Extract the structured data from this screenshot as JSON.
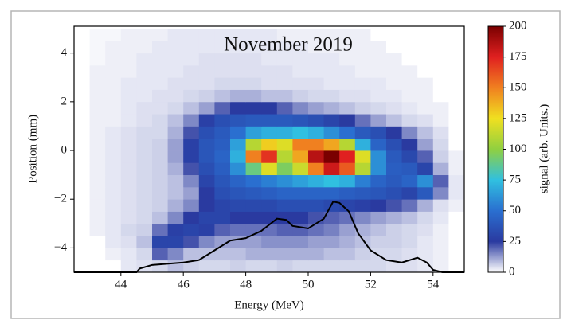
{
  "chart_data": {
    "type": "heatmap",
    "title": "November 2019",
    "xlabel": "Energy (MeV)",
    "ylabel": "Position (mm)",
    "colorbar_label": "signal (arb. Units.)",
    "xlim": [
      42.5,
      55
    ],
    "ylim": [
      -5,
      5.1
    ],
    "xticks": [
      44,
      46,
      48,
      50,
      52,
      54
    ],
    "yticks": [
      {
        "value": -4,
        "label": "−4"
      },
      {
        "value": -2,
        "label": "−2"
      },
      0,
      2,
      4
    ],
    "zlim": [
      0,
      200
    ],
    "zticks": [
      0,
      25,
      50,
      75,
      100,
      125,
      150,
      175,
      200
    ],
    "colormap": [
      "#ffffff",
      "#2a3aa0",
      "#2a6fd0",
      "#30c0e0",
      "#90d040",
      "#f0e020",
      "#f08020",
      "#e02020",
      "#7a0000"
    ],
    "xbins": [
      42.5,
      43,
      43.5,
      44,
      44.5,
      45,
      45.5,
      46,
      46.5,
      47,
      47.5,
      48,
      48.5,
      49,
      49.5,
      50,
      50.5,
      51,
      51.5,
      52,
      52.5,
      53,
      53.5,
      54,
      54.5,
      55
    ],
    "ybins": [
      -5,
      -4.5,
      -4,
      -3.5,
      -3,
      -2.5,
      -2,
      -1.5,
      -1,
      -0.5,
      0,
      0.5,
      1,
      1.5,
      2,
      2.5,
      3,
      3.5,
      4,
      4.5,
      5
    ],
    "z": [
      [
        0,
        0,
        0,
        3,
        4,
        5,
        8,
        6,
        5,
        5,
        6,
        5,
        5,
        6,
        5,
        5,
        5,
        5,
        5,
        5,
        4,
        4,
        3,
        2,
        0
      ],
      [
        0,
        0,
        2,
        3,
        5,
        20,
        15,
        8,
        8,
        8,
        8,
        10,
        10,
        10,
        10,
        10,
        8,
        8,
        6,
        5,
        5,
        4,
        3,
        2,
        0
      ],
      [
        0,
        0,
        3,
        4,
        8,
        30,
        30,
        22,
        15,
        12,
        12,
        12,
        14,
        14,
        14,
        12,
        12,
        10,
        8,
        6,
        6,
        5,
        3,
        2,
        0
      ],
      [
        0,
        2,
        3,
        5,
        6,
        18,
        28,
        30,
        28,
        20,
        18,
        18,
        18,
        20,
        20,
        18,
        16,
        12,
        10,
        8,
        6,
        5,
        4,
        2,
        0
      ],
      [
        0,
        2,
        3,
        4,
        5,
        8,
        15,
        25,
        30,
        30,
        25,
        25,
        25,
        25,
        25,
        22,
        20,
        18,
        15,
        12,
        10,
        8,
        5,
        3,
        0
      ],
      [
        0,
        2,
        3,
        4,
        5,
        6,
        10,
        15,
        25,
        30,
        32,
        32,
        32,
        35,
        35,
        35,
        32,
        30,
        28,
        25,
        22,
        18,
        10,
        4,
        2
      ],
      [
        0,
        2,
        3,
        4,
        5,
        6,
        8,
        12,
        25,
        35,
        38,
        40,
        42,
        45,
        45,
        45,
        45,
        42,
        40,
        38,
        35,
        30,
        40,
        15,
        3
      ],
      [
        0,
        2,
        3,
        4,
        5,
        6,
        8,
        15,
        30,
        38,
        45,
        50,
        55,
        60,
        65,
        70,
        75,
        70,
        55,
        45,
        40,
        45,
        60,
        20,
        3
      ],
      [
        0,
        2,
        3,
        4,
        5,
        6,
        10,
        22,
        35,
        42,
        60,
        90,
        120,
        95,
        115,
        150,
        180,
        160,
        110,
        60,
        42,
        40,
        30,
        10,
        2
      ],
      [
        0,
        2,
        3,
        4,
        5,
        6,
        12,
        28,
        38,
        45,
        70,
        150,
        170,
        110,
        140,
        185,
        200,
        175,
        120,
        60,
        40,
        32,
        20,
        6,
        2
      ],
      [
        0,
        2,
        3,
        4,
        5,
        6,
        12,
        28,
        38,
        42,
        65,
        110,
        130,
        120,
        150,
        150,
        140,
        110,
        70,
        45,
        35,
        25,
        12,
        5,
        0
      ],
      [
        0,
        2,
        3,
        4,
        5,
        5,
        10,
        22,
        35,
        40,
        50,
        65,
        70,
        70,
        75,
        70,
        60,
        50,
        40,
        35,
        25,
        15,
        8,
        4,
        0
      ],
      [
        0,
        2,
        2,
        3,
        4,
        5,
        8,
        15,
        28,
        35,
        38,
        40,
        40,
        40,
        38,
        35,
        30,
        25,
        18,
        12,
        8,
        5,
        4,
        2,
        0
      ],
      [
        0,
        2,
        2,
        3,
        4,
        4,
        5,
        8,
        12,
        20,
        25,
        25,
        25,
        20,
        15,
        12,
        10,
        8,
        6,
        5,
        4,
        3,
        2,
        2,
        0
      ],
      [
        0,
        2,
        2,
        3,
        3,
        4,
        4,
        5,
        6,
        8,
        10,
        10,
        8,
        8,
        6,
        5,
        5,
        4,
        4,
        3,
        3,
        2,
        2,
        0,
        0
      ],
      [
        0,
        2,
        2,
        3,
        3,
        3,
        4,
        4,
        4,
        5,
        5,
        5,
        4,
        4,
        4,
        4,
        3,
        3,
        3,
        3,
        2,
        2,
        2,
        0,
        0
      ],
      [
        0,
        2,
        2,
        2,
        3,
        3,
        3,
        4,
        4,
        4,
        4,
        4,
        4,
        4,
        3,
        3,
        3,
        3,
        2,
        2,
        2,
        2,
        0,
        0,
        0
      ],
      [
        0,
        1,
        2,
        2,
        3,
        3,
        3,
        3,
        4,
        4,
        4,
        4,
        3,
        3,
        3,
        3,
        3,
        2,
        2,
        2,
        2,
        0,
        0,
        0,
        0
      ],
      [
        0,
        1,
        2,
        2,
        2,
        3,
        3,
        3,
        3,
        3,
        3,
        3,
        3,
        3,
        3,
        2,
        2,
        2,
        2,
        2,
        0,
        0,
        0,
        0,
        0
      ],
      [
        0,
        1,
        1,
        2,
        2,
        2,
        3,
        3,
        3,
        3,
        3,
        3,
        3,
        2,
        2,
        2,
        2,
        2,
        2,
        0,
        0,
        0,
        0,
        0,
        0
      ]
    ],
    "line": {
      "color": "#000000",
      "x": [
        42.5,
        44.5,
        44.6,
        45,
        46,
        46.5,
        47,
        47.5,
        48,
        48.5,
        49,
        49.3,
        49.5,
        50,
        50.5,
        50.8,
        51,
        51.3,
        51.6,
        52,
        52.5,
        53,
        53.5,
        53.8,
        54,
        54.3,
        55
      ],
      "y": [
        -5,
        -5,
        -4.85,
        -4.7,
        -4.6,
        -4.5,
        -4.1,
        -3.7,
        -3.6,
        -3.3,
        -2.8,
        -2.85,
        -3.1,
        -3.2,
        -2.8,
        -2.1,
        -2.15,
        -2.5,
        -3.4,
        -4.1,
        -4.5,
        -4.6,
        -4.4,
        -4.6,
        -4.9,
        -5,
        -5
      ]
    }
  }
}
